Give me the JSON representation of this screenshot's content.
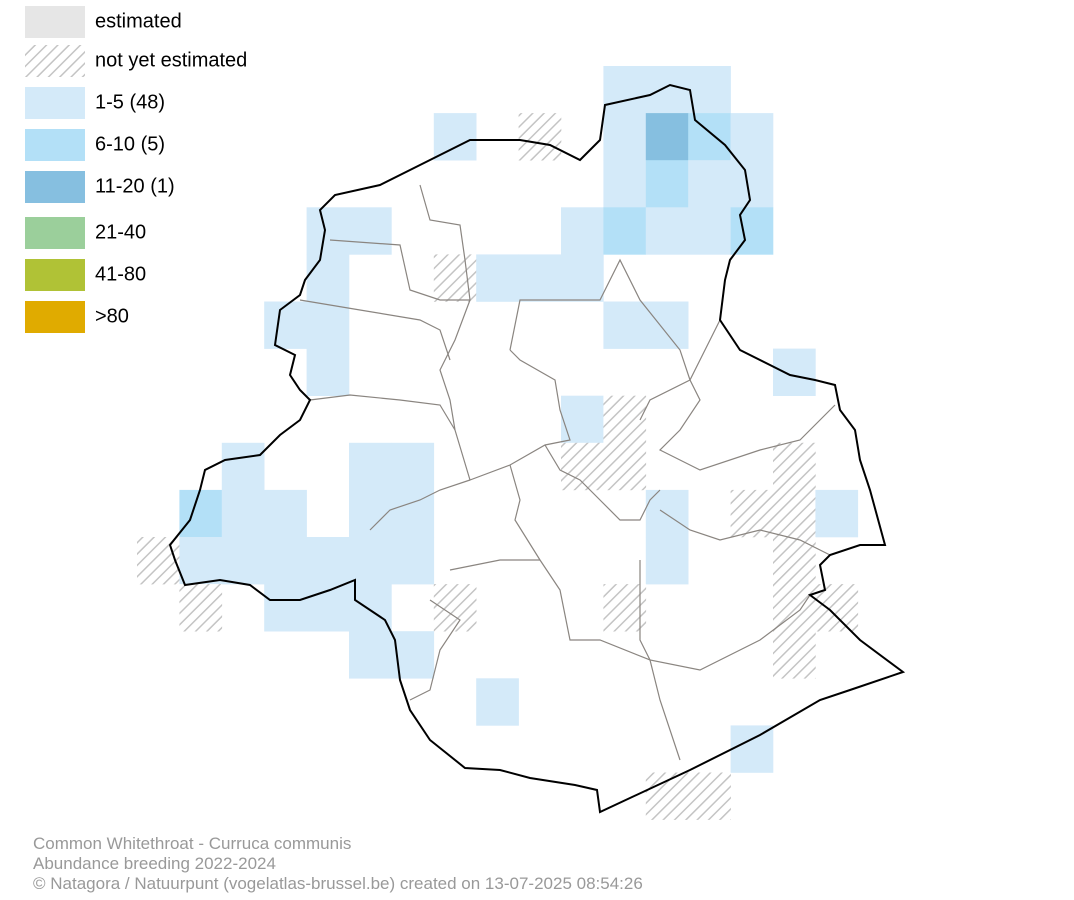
{
  "legend": [
    {
      "label": "estimated",
      "color": "#e6e6e6"
    },
    {
      "label": "not yet estimated"
    },
    {
      "label": "1-5 (48)",
      "color": "#d4eaf9"
    },
    {
      "label": "6-10 (5)",
      "color": "#b3e0f7"
    },
    {
      "label": "11-20 (1)",
      "color": "#86bfe0"
    },
    {
      "label": "21-40",
      "color": "#9bcf9b"
    },
    {
      "label": "41-80",
      "color": "#b0c236"
    },
    {
      "label": ">80",
      "color": "#e0ab00"
    }
  ],
  "footer": [
    "Common Whitethroat - Curruca communis",
    "Abundance breeding 2022-2024",
    "© Natagora / Natuurpunt (vogelatlas-brussel.be) created on 13-07-2025 08:54:26"
  ]
}
